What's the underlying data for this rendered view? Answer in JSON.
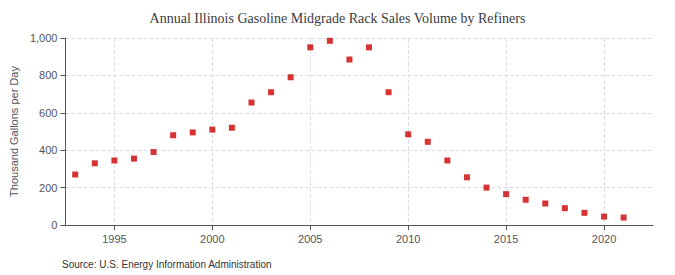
{
  "chart_data": {
    "type": "scatter",
    "title": "Annual Illinois Gasoline Midgrade Rack Sales Volume by Refiners",
    "ylabel": "Thousand Gallons per Day",
    "source": "Source: U.S. Energy Information Administration",
    "x": [
      1993,
      1994,
      1995,
      1996,
      1997,
      1998,
      1999,
      2000,
      2001,
      2002,
      2003,
      2004,
      2005,
      2006,
      2007,
      2008,
      2009,
      2010,
      2011,
      2012,
      2013,
      2014,
      2015,
      2016,
      2017,
      2018,
      2019,
      2020,
      2021
    ],
    "values": [
      270,
      330,
      345,
      355,
      390,
      480,
      495,
      510,
      520,
      655,
      710,
      790,
      950,
      985,
      885,
      950,
      710,
      485,
      445,
      345,
      255,
      200,
      165,
      135,
      115,
      90,
      65,
      45,
      40
    ],
    "color": "#cc0000",
    "marker": "square",
    "xlim": [
      1992.5,
      2022.5
    ],
    "xticks": [
      1995,
      2000,
      2005,
      2010,
      2015,
      2020
    ],
    "ylim": [
      0,
      1000
    ],
    "yticks": [
      0,
      200,
      400,
      600,
      800,
      {
        "value": 1000,
        "label": "1,000"
      }
    ],
    "grid": true
  }
}
